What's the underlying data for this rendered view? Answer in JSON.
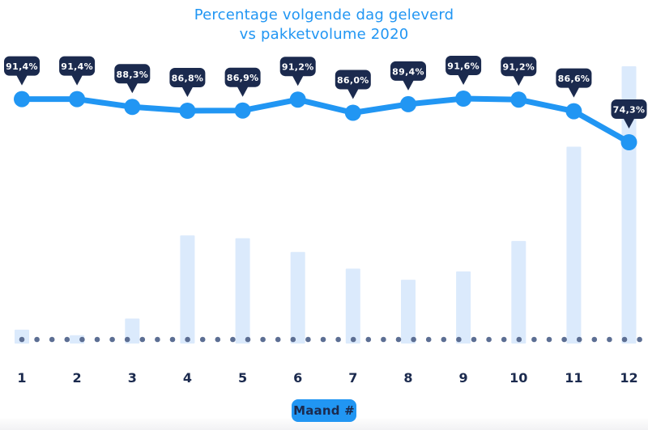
{
  "title": {
    "line1": "Percentage volgende dag geleverd",
    "line2": "vs pakketvolume 2020"
  },
  "x_axis": {
    "labels": [
      "1",
      "2",
      "3",
      "4",
      "5",
      "6",
      "7",
      "8",
      "9",
      "10",
      "11",
      "12"
    ],
    "title": "Maand #"
  },
  "chart_data": [
    {
      "type": "line",
      "name": "Percentage volgende dag geleverd",
      "categories": [
        "1",
        "2",
        "3",
        "4",
        "5",
        "6",
        "7",
        "8",
        "9",
        "10",
        "11",
        "12"
      ],
      "values": [
        91.4,
        91.4,
        88.3,
        86.8,
        86.9,
        91.2,
        86.0,
        89.4,
        91.6,
        91.2,
        86.6,
        74.3
      ],
      "point_labels": [
        "91,4%",
        "91,4%",
        "88,3%",
        "86,8%",
        "86,9%",
        "91,2%",
        "86,0%",
        "89,4%",
        "91,6%",
        "91,2%",
        "86,6%",
        "74,3%"
      ],
      "color": "#2196f3",
      "marker_color": "#2196f3",
      "label_bg": "#1b2a4e",
      "label_text_color": "#ffffff"
    },
    {
      "type": "bar",
      "name": "pakketvolume 2020",
      "categories": [
        "1",
        "2",
        "3",
        "4",
        "5",
        "6",
        "7",
        "8",
        "9",
        "10",
        "11",
        "12"
      ],
      "relative_heights_pct_of_max": [
        5,
        3,
        9,
        39,
        38,
        33,
        27,
        23,
        26,
        37,
        71,
        100
      ],
      "color": "#dbeafc"
    }
  ],
  "baseline_dots": {
    "color": "#5c6e93"
  },
  "colors": {
    "accent_blue": "#2196f3",
    "navy": "#1b2a4e",
    "bar_fill": "#dbeafc",
    "dot": "#5c6e93",
    "background": "#ffffff",
    "footer_strip": "#f2f2f4"
  }
}
